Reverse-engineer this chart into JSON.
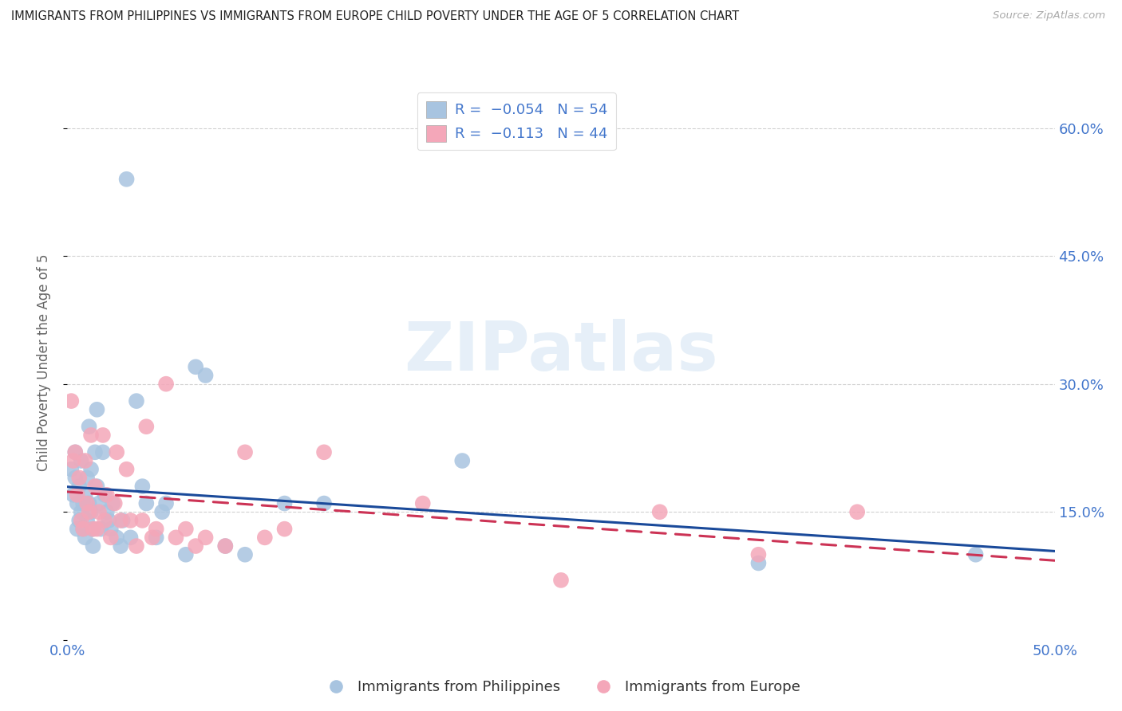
{
  "title": "IMMIGRANTS FROM PHILIPPINES VS IMMIGRANTS FROM EUROPE CHILD POVERTY UNDER THE AGE OF 5 CORRELATION CHART",
  "source": "Source: ZipAtlas.com",
  "ylabel": "Child Poverty Under the Age of 5",
  "ytick_vals": [
    0.0,
    0.15,
    0.3,
    0.45,
    0.6
  ],
  "ytick_labels": [
    "",
    "15.0%",
    "30.0%",
    "45.0%",
    "60.0%"
  ],
  "xtick_vals": [
    0.0,
    0.5
  ],
  "xtick_labels": [
    "0.0%",
    "50.0%"
  ],
  "xlim": [
    0.0,
    0.5
  ],
  "ylim": [
    0.0,
    0.65
  ],
  "watermark": "ZIPatlas",
  "series_blue": {
    "color": "#a8c4e0",
    "line_color": "#1a4a9a",
    "x": [
      0.002,
      0.003,
      0.004,
      0.004,
      0.005,
      0.005,
      0.006,
      0.006,
      0.007,
      0.007,
      0.008,
      0.008,
      0.009,
      0.009,
      0.01,
      0.01,
      0.011,
      0.011,
      0.012,
      0.012,
      0.013,
      0.013,
      0.014,
      0.015,
      0.015,
      0.016,
      0.017,
      0.018,
      0.019,
      0.02,
      0.021,
      0.022,
      0.023,
      0.025,
      0.027,
      0.028,
      0.03,
      0.032,
      0.035,
      0.038,
      0.04,
      0.045,
      0.048,
      0.05,
      0.06,
      0.065,
      0.07,
      0.08,
      0.09,
      0.11,
      0.13,
      0.2,
      0.35,
      0.46
    ],
    "y": [
      0.2,
      0.17,
      0.19,
      0.22,
      0.16,
      0.13,
      0.18,
      0.14,
      0.21,
      0.15,
      0.16,
      0.13,
      0.17,
      0.12,
      0.19,
      0.14,
      0.25,
      0.16,
      0.2,
      0.15,
      0.13,
      0.11,
      0.22,
      0.27,
      0.18,
      0.16,
      0.13,
      0.22,
      0.17,
      0.15,
      0.14,
      0.13,
      0.16,
      0.12,
      0.11,
      0.14,
      0.54,
      0.12,
      0.28,
      0.18,
      0.16,
      0.12,
      0.15,
      0.16,
      0.1,
      0.32,
      0.31,
      0.11,
      0.1,
      0.16,
      0.16,
      0.21,
      0.09,
      0.1
    ]
  },
  "series_pink": {
    "color": "#f4a7b9",
    "line_color": "#cc3355",
    "x": [
      0.002,
      0.003,
      0.004,
      0.005,
      0.006,
      0.007,
      0.008,
      0.009,
      0.01,
      0.011,
      0.012,
      0.013,
      0.014,
      0.015,
      0.016,
      0.018,
      0.019,
      0.02,
      0.022,
      0.024,
      0.025,
      0.027,
      0.03,
      0.032,
      0.035,
      0.038,
      0.04,
      0.043,
      0.045,
      0.05,
      0.055,
      0.06,
      0.065,
      0.07,
      0.08,
      0.09,
      0.1,
      0.11,
      0.13,
      0.18,
      0.25,
      0.3,
      0.35,
      0.4
    ],
    "y": [
      0.28,
      0.21,
      0.22,
      0.17,
      0.19,
      0.14,
      0.13,
      0.21,
      0.16,
      0.15,
      0.24,
      0.13,
      0.18,
      0.13,
      0.15,
      0.24,
      0.14,
      0.17,
      0.12,
      0.16,
      0.22,
      0.14,
      0.2,
      0.14,
      0.11,
      0.14,
      0.25,
      0.12,
      0.13,
      0.3,
      0.12,
      0.13,
      0.11,
      0.12,
      0.11,
      0.22,
      0.12,
      0.13,
      0.22,
      0.16,
      0.07,
      0.15,
      0.1,
      0.15
    ]
  },
  "legend_entries": [
    {
      "label_r": "R = ",
      "label_val": "-0.054",
      "label_n": "  N = ",
      "label_nval": "54",
      "color": "#a8c4e0"
    },
    {
      "label_r": "R =  ",
      "label_val": "-0.113",
      "label_n": "  N = ",
      "label_nval": "44",
      "color": "#f4a7b9"
    }
  ],
  "background_color": "#ffffff",
  "grid_color": "#cccccc",
  "title_color": "#222222",
  "axis_color": "#4477cc",
  "ylabel_color": "#666666",
  "bubble_size": 200
}
